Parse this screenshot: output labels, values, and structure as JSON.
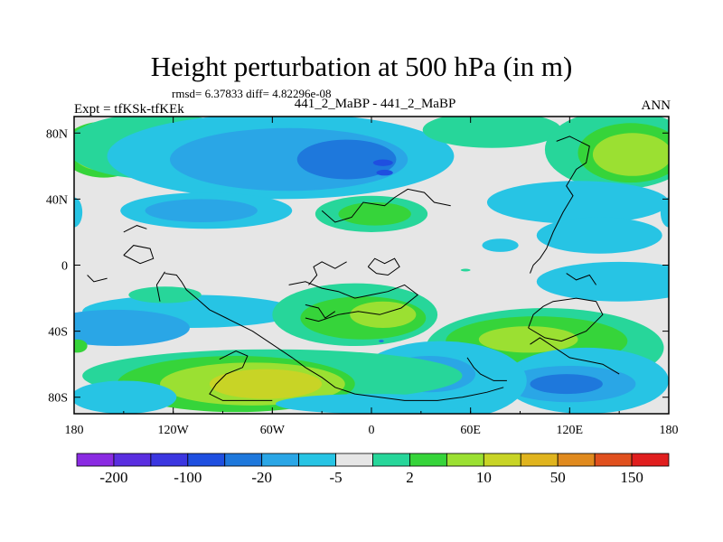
{
  "chart_data": {
    "type": "heatmap",
    "title": "Height perturbation at 500 hPa (in m)",
    "stats_text": "rmsd= 6.37833 diff= 4.82296e-08",
    "left_label": "Expt = tfKSk-tfKEk",
    "center_label": "441_2_MaBP - 441_2_MaBP",
    "right_label": "ANN",
    "x_range": [
      -180,
      180
    ],
    "y_range": [
      -90,
      90
    ],
    "x_ticks": [
      {
        "value": -180,
        "label": "180"
      },
      {
        "value": -120,
        "label": "120W"
      },
      {
        "value": -60,
        "label": "60W"
      },
      {
        "value": 0,
        "label": "0"
      },
      {
        "value": 60,
        "label": "60E"
      },
      {
        "value": 120,
        "label": "120E"
      },
      {
        "value": 180,
        "label": "180"
      }
    ],
    "y_ticks": [
      {
        "value": 80,
        "label": "80N"
      },
      {
        "value": 40,
        "label": "40N"
      },
      {
        "value": 0,
        "label": "0"
      },
      {
        "value": -40,
        "label": "40S"
      },
      {
        "value": -80,
        "label": "80S"
      }
    ],
    "colorbar": {
      "colors": [
        "#8a2be2",
        "#5a2ee0",
        "#3b36e0",
        "#1f4fe0",
        "#1e78dc",
        "#2aa6e6",
        "#27c4e4",
        "#e6e6e6",
        "#27d69a",
        "#36d43a",
        "#9be032",
        "#c8d426",
        "#e0b41e",
        "#e08a1e",
        "#e0501e",
        "#e01e1e"
      ],
      "labels": [
        {
          "text": "-200",
          "boundary": 1
        },
        {
          "text": "-100",
          "boundary": 3
        },
        {
          "text": "-20",
          "boundary": 5
        },
        {
          "text": "-5",
          "boundary": 7
        },
        {
          "text": "2",
          "boundary": 9
        },
        {
          "text": "10",
          "boundary": 11
        },
        {
          "text": "50",
          "boundary": 13
        },
        {
          "text": "150",
          "boundary": 15
        }
      ]
    },
    "fields": [
      {
        "cx": -162,
        "cy": 70,
        "rx": 26,
        "ry": 17,
        "level": 9
      },
      {
        "cx": -162,
        "cy": 70,
        "rx": 20,
        "ry": 13,
        "level": 10
      },
      {
        "cx": -130,
        "cy": 72,
        "rx": 55,
        "ry": 20,
        "level": 8
      },
      {
        "cx": -55,
        "cy": 66,
        "rx": 105,
        "ry": 26,
        "level": 6
      },
      {
        "cx": -50,
        "cy": 64,
        "rx": 72,
        "ry": 19,
        "level": 5
      },
      {
        "cx": -15,
        "cy": 64,
        "rx": 30,
        "ry": 12,
        "level": 4
      },
      {
        "cx": 7,
        "cy": 62,
        "rx": 6,
        "ry": 2,
        "level": 3
      },
      {
        "cx": 73,
        "cy": 82,
        "rx": 42,
        "ry": 11,
        "level": 8
      },
      {
        "cx": 150,
        "cy": 70,
        "rx": 45,
        "ry": 24,
        "level": 8
      },
      {
        "cx": 157,
        "cy": 68,
        "rx": 32,
        "ry": 18,
        "level": 9
      },
      {
        "cx": 158,
        "cy": 67,
        "rx": 24,
        "ry": 13,
        "level": 10
      },
      {
        "cx": -100,
        "cy": 33,
        "rx": 52,
        "ry": 11,
        "level": 6
      },
      {
        "cx": -103,
        "cy": 33,
        "rx": 34,
        "ry": 7,
        "level": 5
      },
      {
        "cx": 0,
        "cy": 31,
        "rx": 34,
        "ry": 11,
        "level": 8
      },
      {
        "cx": 2,
        "cy": 31,
        "rx": 22,
        "ry": 7,
        "level": 9
      },
      {
        "cx": 78,
        "cy": 12,
        "rx": 11,
        "ry": 4,
        "level": 6
      },
      {
        "cx": 125,
        "cy": 38,
        "rx": 55,
        "ry": 13,
        "level": 6
      },
      {
        "cx": 138,
        "cy": 18,
        "rx": 38,
        "ry": 11,
        "level": 6
      },
      {
        "cx": 180,
        "cy": 32,
        "rx": 5,
        "ry": 9,
        "level": 6
      },
      {
        "cx": -180,
        "cy": 32,
        "rx": 5,
        "ry": 9,
        "level": 6
      },
      {
        "cx": 150,
        "cy": -10,
        "rx": 50,
        "ry": 12,
        "level": 6
      },
      {
        "cx": -110,
        "cy": -28,
        "rx": 65,
        "ry": 10,
        "level": 6
      },
      {
        "cx": -155,
        "cy": -38,
        "rx": 45,
        "ry": 11,
        "level": 5
      },
      {
        "cx": -125,
        "cy": -18,
        "rx": 22,
        "ry": 5,
        "level": 8
      },
      {
        "cx": -10,
        "cy": -30,
        "rx": 50,
        "ry": 19,
        "level": 8
      },
      {
        "cx": -5,
        "cy": -32,
        "rx": 38,
        "ry": 13,
        "level": 9
      },
      {
        "cx": 7,
        "cy": -30,
        "rx": 20,
        "ry": 8,
        "level": 10
      },
      {
        "cx": 105,
        "cy": -50,
        "rx": 72,
        "ry": 24,
        "level": 8
      },
      {
        "cx": 100,
        "cy": -46,
        "rx": 55,
        "ry": 15,
        "level": 9
      },
      {
        "cx": 95,
        "cy": -45,
        "rx": 30,
        "ry": 8,
        "level": 10
      },
      {
        "cx": 130,
        "cy": -70,
        "rx": 50,
        "ry": 20,
        "level": 6
      },
      {
        "cx": 120,
        "cy": -72,
        "rx": 40,
        "ry": 11,
        "level": 5
      },
      {
        "cx": 118,
        "cy": -72,
        "rx": 22,
        "ry": 6,
        "level": 4
      },
      {
        "cx": 42,
        "cy": -70,
        "rx": 52,
        "ry": 24,
        "level": 6
      },
      {
        "cx": 35,
        "cy": -66,
        "rx": 28,
        "ry": 11,
        "level": 5
      },
      {
        "cx": -178,
        "cy": -49,
        "rx": 6,
        "ry": 4,
        "level": 9
      },
      {
        "cx": -60,
        "cy": -67,
        "rx": 115,
        "ry": 16,
        "level": 8
      },
      {
        "cx": -82,
        "cy": -72,
        "rx": 72,
        "ry": 17,
        "level": 9
      },
      {
        "cx": -72,
        "cy": -72,
        "rx": 56,
        "ry": 13,
        "level": 10
      },
      {
        "cx": -64,
        "cy": -72,
        "rx": 34,
        "ry": 9,
        "level": 11
      },
      {
        "cx": -150,
        "cy": -80,
        "rx": 32,
        "ry": 10,
        "level": 6
      },
      {
        "cx": 0,
        "cy": -84,
        "rx": 58,
        "ry": 6,
        "level": 6
      }
    ],
    "coastline": [
      [
        [
          -125,
          -5
        ],
        [
          -118,
          -6
        ],
        [
          -115,
          -10
        ],
        [
          -112,
          -15
        ],
        [
          -106,
          -20
        ],
        [
          -98,
          -27
        ],
        [
          -88,
          -32
        ],
        [
          -80,
          -36
        ],
        [
          -72,
          -40
        ],
        [
          -60,
          -48
        ],
        [
          -48,
          -56
        ],
        [
          -40,
          -62
        ],
        [
          -30,
          -68
        ],
        [
          -22,
          -74
        ],
        [
          -10,
          -78
        ],
        [
          5,
          -80
        ],
        [
          20,
          -82
        ],
        [
          40,
          -82
        ],
        [
          55,
          -80
        ],
        [
          70,
          -77
        ],
        [
          80,
          -74
        ]
      ],
      [
        [
          -92,
          -57
        ],
        [
          -82,
          -52
        ],
        [
          -75,
          -55
        ],
        [
          -78,
          -62
        ],
        [
          -88,
          -66
        ],
        [
          -94,
          -72
        ],
        [
          -98,
          -78
        ],
        [
          -90,
          -82
        ],
        [
          -60,
          -82
        ]
      ],
      [
        [
          -50,
          -12
        ],
        [
          -40,
          -10
        ],
        [
          -30,
          -14
        ],
        [
          -20,
          -16
        ],
        [
          -10,
          -20
        ],
        [
          0,
          -18
        ],
        [
          10,
          -16
        ],
        [
          20,
          -12
        ],
        [
          28,
          -18
        ],
        [
          18,
          -26
        ],
        [
          5,
          -30
        ],
        [
          -8,
          -28
        ],
        [
          -20,
          -30
        ],
        [
          -32,
          -34
        ],
        [
          -40,
          -32
        ]
      ],
      [
        [
          -40,
          -24
        ],
        [
          -32,
          -26
        ],
        [
          -28,
          -32
        ],
        [
          -22,
          -28
        ]
      ],
      [
        [
          -38,
          -12
        ],
        [
          -33,
          -6
        ],
        [
          -35,
          -1
        ],
        [
          -30,
          2
        ],
        [
          -22,
          -2
        ],
        [
          -15,
          2
        ]
      ],
      [
        [
          -2,
          -1
        ],
        [
          2,
          4
        ],
        [
          8,
          1
        ],
        [
          14,
          4
        ],
        [
          17,
          -1
        ],
        [
          10,
          -6
        ],
        [
          3,
          -5
        ],
        [
          -2,
          -1
        ]
      ],
      [
        [
          -30,
          33
        ],
        [
          -22,
          26
        ],
        [
          -12,
          29
        ],
        [
          -5,
          38
        ],
        [
          8,
          36
        ],
        [
          14,
          41
        ],
        [
          22,
          46
        ],
        [
          32,
          44
        ],
        [
          38,
          38
        ],
        [
          48,
          36
        ]
      ],
      [
        [
          -150,
          6
        ],
        [
          -144,
          12
        ],
        [
          -134,
          10
        ],
        [
          -132,
          4
        ],
        [
          -140,
          1
        ],
        [
          -150,
          6
        ]
      ],
      [
        [
          -172,
          -6
        ],
        [
          -168,
          -10
        ],
        [
          -160,
          -8
        ]
      ],
      [
        [
          95,
          -38
        ],
        [
          98,
          -30
        ],
        [
          104,
          -25
        ],
        [
          110,
          -22
        ],
        [
          124,
          -20
        ],
        [
          136,
          -22
        ],
        [
          140,
          -30
        ],
        [
          130,
          -40
        ],
        [
          115,
          -46
        ],
        [
          105,
          -44
        ],
        [
          95,
          -38
        ]
      ],
      [
        [
          96,
          -48
        ],
        [
          102,
          -44
        ],
        [
          120,
          -56
        ],
        [
          130,
          -58
        ],
        [
          140,
          -60
        ],
        [
          150,
          -66
        ]
      ],
      [
        [
          96,
          -5
        ],
        [
          98,
          0
        ],
        [
          102,
          4
        ],
        [
          106,
          10
        ],
        [
          110,
          20
        ],
        [
          116,
          32
        ],
        [
          122,
          42
        ],
        [
          118,
          48
        ],
        [
          124,
          58
        ],
        [
          130,
          62
        ],
        [
          132,
          72
        ],
        [
          120,
          78
        ],
        [
          112,
          75
        ]
      ],
      [
        [
          118,
          -5
        ],
        [
          124,
          -9
        ],
        [
          132,
          -6
        ],
        [
          136,
          -12
        ]
      ],
      [
        [
          58,
          -56
        ],
        [
          62,
          -62
        ],
        [
          66,
          -66
        ],
        [
          74,
          -70
        ],
        [
          82,
          -70
        ]
      ],
      [
        [
          -150,
          20
        ],
        [
          -142,
          24
        ],
        [
          -136,
          22
        ]
      ],
      [
        [
          -125,
          -4
        ],
        [
          -130,
          -12
        ],
        [
          -128,
          -22
        ]
      ]
    ],
    "small_dots": [
      {
        "cx": 57,
        "cy": -3,
        "rx": 3,
        "ry": 0.8,
        "level": 8
      },
      {
        "cx": 6,
        "cy": -46,
        "rx": 1.5,
        "ry": 0.8,
        "level": 4
      },
      {
        "cx": 8,
        "cy": 56,
        "rx": 5,
        "ry": 1.8,
        "level": 3
      }
    ]
  }
}
